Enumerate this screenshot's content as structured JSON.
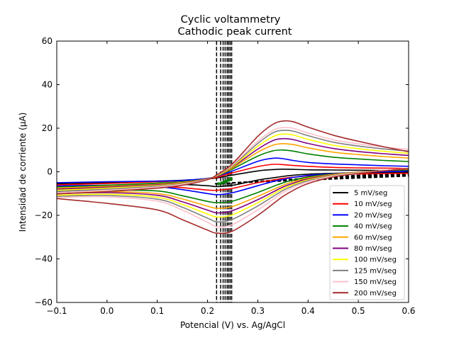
{
  "chart_data": {
    "type": "line",
    "title": "Cyclic voltammetry",
    "subtitle": "Cathodic peak current",
    "xlabel": "Potencial (V) vs. Ag/AgCl",
    "ylabel": "Intensidad de corriente (μA)",
    "xlim": [
      -0.1,
      0.6
    ],
    "ylim": [
      -60,
      60
    ],
    "xticks": [
      -0.1,
      0.0,
      0.1,
      0.2,
      0.3,
      0.4,
      0.5,
      0.6
    ],
    "xtick_labels": [
      "−0.1",
      "0.0",
      "0.1",
      "0.2",
      "0.3",
      "0.4",
      "0.5",
      "0.6"
    ],
    "yticks": [
      -60,
      -40,
      -20,
      0,
      20,
      40,
      60
    ],
    "ytick_labels": [
      "−60",
      "−40",
      "−20",
      "0",
      "20",
      "40",
      "60"
    ],
    "grid": false,
    "legend_position": "lower-right",
    "vertical_dashed_lines_x": [
      0.218,
      0.226,
      0.231,
      0.235,
      0.239,
      0.242,
      0.245,
      0.248
    ],
    "x": [
      -0.1,
      0.0,
      0.1,
      0.15,
      0.2,
      0.22,
      0.25,
      0.3,
      0.33,
      0.35,
      0.37,
      0.4,
      0.45,
      0.5,
      0.55,
      0.6
    ],
    "series": [
      {
        "name": "5 mV/seg",
        "color": "#000000",
        "forward": [
          -5.5,
          -5.0,
          -4.3,
          -3.9,
          -3.3,
          -2.8,
          -1.5,
          0.4,
          1.0,
          1.2,
          1.1,
          0.9,
          0.8,
          0.7,
          0.6,
          0.6
        ],
        "reverse": [
          -6.8,
          -6.2,
          -5.6,
          -5.8,
          -6.4,
          -6.8,
          -6.2,
          -3.8,
          -2.8,
          -2.1,
          -1.6,
          -1.1,
          -0.7,
          -0.5,
          -0.4,
          -0.3
        ]
      },
      {
        "name": "10 mV/seg",
        "color": "#ff0000",
        "forward": [
          -6.0,
          -5.4,
          -4.6,
          -4.1,
          -3.2,
          -2.5,
          -0.5,
          2.4,
          3.4,
          3.3,
          2.9,
          2.5,
          2.0,
          1.8,
          1.7,
          1.5
        ],
        "reverse": [
          -7.8,
          -7.1,
          -6.8,
          -7.3,
          -8.4,
          -8.5,
          -7.6,
          -5.0,
          -3.8,
          -3.0,
          -2.5,
          -1.9,
          -1.3,
          -1.0,
          -0.8,
          -0.7
        ]
      },
      {
        "name": "20 mV/seg",
        "color": "#0000ff",
        "forward": [
          -5.0,
          -4.6,
          -4.3,
          -4.0,
          -3.0,
          -2.0,
          0.4,
          4.8,
          6.2,
          6.0,
          5.2,
          4.3,
          3.6,
          3.2,
          2.8,
          2.5
        ],
        "reverse": [
          -6.5,
          -6.2,
          -6.9,
          -8.2,
          -10.0,
          -10.5,
          -9.6,
          -6.4,
          -4.5,
          -3.5,
          -2.6,
          -1.7,
          -0.8,
          -0.3,
          0.0,
          0.3
        ]
      },
      {
        "name": "40 mV/seg",
        "color": "#008000",
        "forward": [
          -7.0,
          -6.2,
          -5.2,
          -4.6,
          -3.2,
          -1.9,
          1.3,
          7.2,
          9.6,
          10.0,
          9.5,
          8.2,
          6.7,
          5.9,
          5.2,
          4.7
        ],
        "reverse": [
          -9.0,
          -8.4,
          -8.8,
          -11.0,
          -13.6,
          -14.2,
          -13.5,
          -9.5,
          -6.8,
          -5.1,
          -3.8,
          -2.4,
          -1.0,
          -0.2,
          0.5,
          0.9
        ]
      },
      {
        "name": "60 mV/seg",
        "color": "#ffa500",
        "forward": [
          -7.5,
          -6.7,
          -5.7,
          -4.9,
          -3.2,
          -1.8,
          1.8,
          9.0,
          12.2,
          12.9,
          12.5,
          11.0,
          9.0,
          7.9,
          7.0,
          6.3
        ],
        "reverse": [
          -9.5,
          -9.1,
          -10.0,
          -12.5,
          -15.8,
          -16.8,
          -15.9,
          -11.3,
          -8.2,
          -6.2,
          -4.6,
          -2.9,
          -1.2,
          -0.2,
          0.6,
          1.2
        ]
      },
      {
        "name": "80 mV/seg",
        "color": "#800080",
        "forward": [
          -8.0,
          -7.1,
          -6.0,
          -5.2,
          -3.3,
          -1.7,
          2.2,
          10.4,
          14.3,
          15.2,
          14.8,
          13.0,
          10.7,
          9.3,
          8.3,
          7.5
        ],
        "reverse": [
          -10.0,
          -9.6,
          -10.8,
          -13.8,
          -17.6,
          -18.9,
          -17.8,
          -12.8,
          -9.3,
          -7.0,
          -5.3,
          -3.3,
          -1.4,
          -0.3,
          0.6,
          1.3
        ]
      },
      {
        "name": "100 mV/seg",
        "color": "#ffff00",
        "forward": [
          -8.5,
          -7.5,
          -6.3,
          -5.4,
          -3.4,
          -1.6,
          2.5,
          11.7,
          16.1,
          17.3,
          16.9,
          14.9,
          12.2,
          10.6,
          9.4,
          8.5
        ],
        "reverse": [
          -10.8,
          -10.3,
          -11.7,
          -15.0,
          -19.4,
          -20.8,
          -19.7,
          -14.2,
          -10.3,
          -7.8,
          -5.9,
          -3.7,
          -1.6,
          -0.4,
          0.6,
          1.4
        ]
      },
      {
        "name": "125 mV/seg",
        "color": "#808080",
        "forward": [
          -9.0,
          -8.0,
          -6.6,
          -5.6,
          -3.4,
          -1.4,
          2.9,
          13.0,
          17.9,
          19.0,
          18.7,
          16.6,
          13.6,
          11.8,
          10.5,
          9.5
        ],
        "reverse": [
          -11.3,
          -10.9,
          -12.6,
          -16.3,
          -21.3,
          -23.0,
          -21.8,
          -15.7,
          -11.4,
          -8.6,
          -6.5,
          -4.1,
          -1.8,
          -0.5,
          0.6,
          1.5
        ]
      },
      {
        "name": "150 mV/seg",
        "color": "#ffc0cb",
        "forward": [
          -9.6,
          -8.5,
          -7.0,
          -5.8,
          -3.5,
          -1.3,
          3.3,
          14.0,
          19.0,
          20.3,
          20.0,
          17.8,
          14.7,
          12.8,
          11.4,
          10.3
        ],
        "reverse": [
          -11.8,
          -11.5,
          -13.5,
          -17.6,
          -23.2,
          -25.3,
          -24.2,
          -17.5,
          -12.7,
          -9.6,
          -7.3,
          -4.6,
          -2.0,
          -0.6,
          0.6,
          1.6
        ]
      },
      {
        "name": "200 mV/seg",
        "color": "#a52a2a",
        "forward": [
          -10.2,
          -9.1,
          -7.5,
          -6.2,
          -3.6,
          -1.2,
          3.8,
          16.3,
          21.8,
          23.3,
          23.0,
          20.5,
          16.8,
          14.0,
          11.5,
          9.2
        ],
        "reverse": [
          -12.3,
          -14.5,
          -17.5,
          -22.0,
          -26.8,
          -28.2,
          -27.2,
          -20.0,
          -14.8,
          -11.3,
          -8.6,
          -5.4,
          -2.4,
          -0.8,
          0.4,
          1.5
        ]
      }
    ]
  }
}
